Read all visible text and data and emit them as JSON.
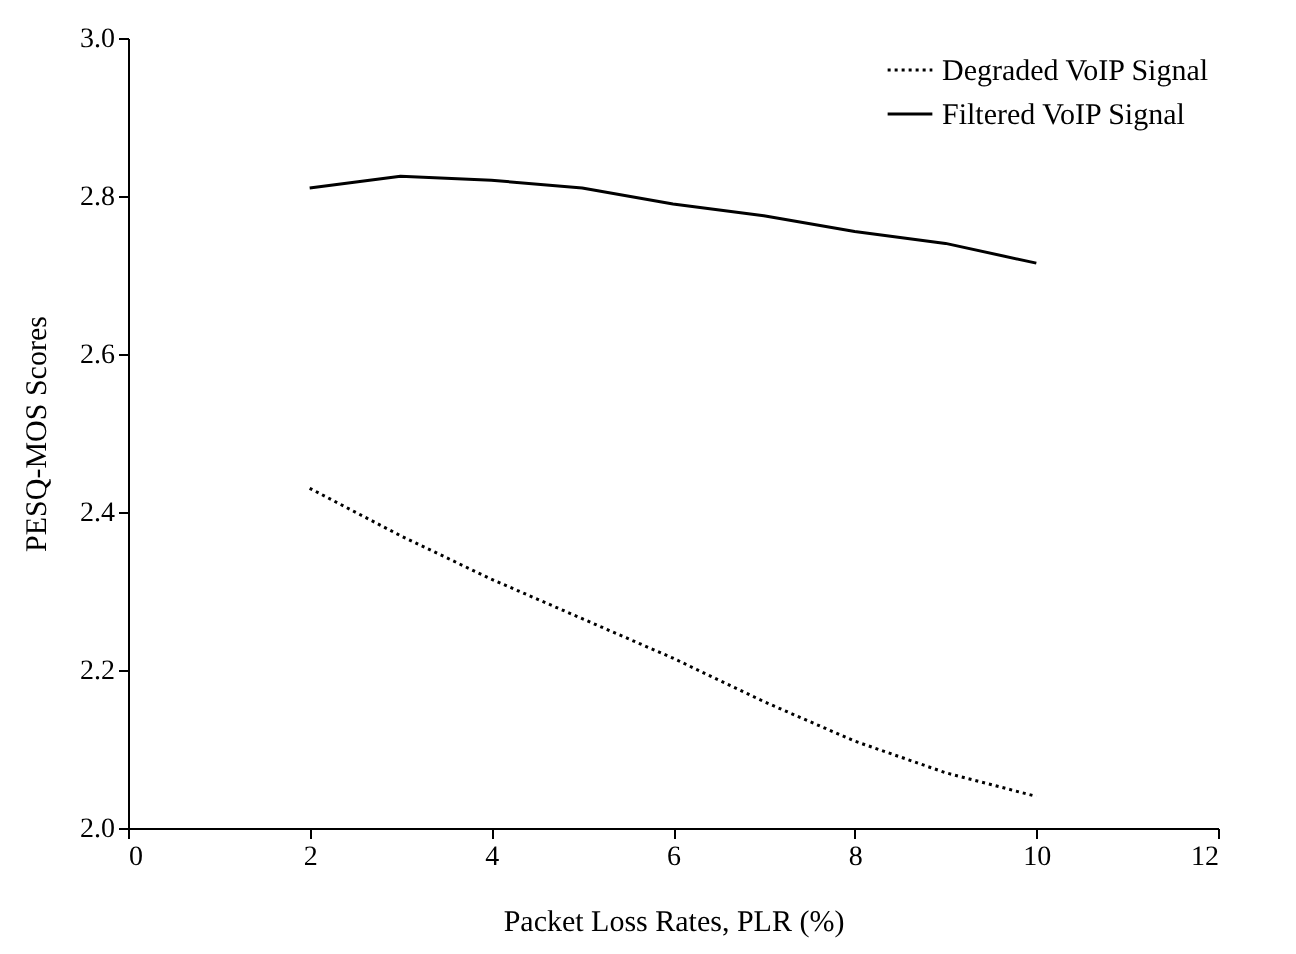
{
  "chart_data": {
    "type": "line",
    "xlabel": "Packet Loss Rates, PLR (%)",
    "ylabel": "PESQ-MOS Scores",
    "x": [
      2,
      3,
      4,
      5,
      6,
      7,
      8,
      9,
      10
    ],
    "series": [
      {
        "name": "Degraded VoIP Signal",
        "color": "#000000",
        "line_style": "dotted",
        "values": [
          2.43,
          2.37,
          2.315,
          2.265,
          2.215,
          2.16,
          2.11,
          2.07,
          2.04
        ]
      },
      {
        "name": "Filtered VoIP Signal",
        "color": "#000000",
        "line_style": "solid",
        "values": [
          2.81,
          2.825,
          2.82,
          2.81,
          2.79,
          2.775,
          2.755,
          2.74,
          2.715
        ]
      }
    ],
    "xlim": [
      0,
      12
    ],
    "xticks": [
      0,
      2,
      4,
      6,
      8,
      10,
      12
    ],
    "ylim": [
      2.0,
      3.0
    ],
    "yticks": [
      {
        "value": 2.0,
        "label": "2.0"
      },
      {
        "value": 2.2,
        "label": "2.2"
      },
      {
        "value": 2.4,
        "label": "2.4"
      },
      {
        "value": 2.6,
        "label": "2.6"
      },
      {
        "value": 2.8,
        "label": "2.8"
      },
      {
        "value": 3.0,
        "label": "3.0"
      }
    ],
    "grid": false,
    "legend": "top right",
    "marker": "none"
  }
}
